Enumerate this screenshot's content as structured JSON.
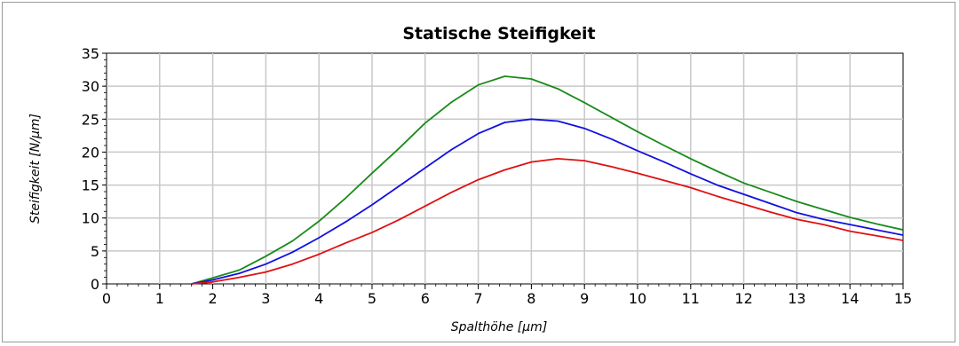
{
  "chart_data": {
    "type": "line",
    "title": "Statische Steifigkeit",
    "xlabel": "Spalthöhe [µm]",
    "ylabel": "Steifigkeit [N/µm]",
    "xlim": [
      0,
      15
    ],
    "ylim": [
      0,
      35
    ],
    "x_ticks": [
      "0",
      "1",
      "2",
      "3",
      "4",
      "5",
      "6",
      "7",
      "8",
      "9",
      "10",
      "11",
      "12",
      "13",
      "14",
      "15"
    ],
    "y_ticks": [
      "0",
      "5",
      "10",
      "15",
      "20",
      "25",
      "30",
      "35"
    ],
    "grid": true,
    "legend": "none",
    "series": [
      {
        "color": "#1a8a1a",
        "x": [
          1.6,
          2,
          2.5,
          3,
          3.5,
          4,
          4.5,
          5,
          5.5,
          6,
          6.5,
          7,
          7.5,
          8,
          8.5,
          9,
          9.5,
          10,
          10.5,
          11,
          11.5,
          12,
          12.5,
          13,
          13.5,
          14,
          14.5,
          15
        ],
        "y": [
          0,
          0.9,
          2.1,
          4.2,
          6.5,
          9.5,
          13,
          16.8,
          20.5,
          24.4,
          27.6,
          30.2,
          31.5,
          31.1,
          29.6,
          27.5,
          25.3,
          23.1,
          21.0,
          19.0,
          17.1,
          15.3,
          13.9,
          12.5,
          11.3,
          10.1,
          9.1,
          8.2
        ]
      },
      {
        "color": "#1010e0",
        "x": [
          1.6,
          2,
          2.5,
          3,
          3.5,
          4,
          4.5,
          5,
          5.5,
          6,
          6.5,
          7,
          7.5,
          8,
          8.5,
          9,
          9.5,
          10,
          10.5,
          11,
          11.5,
          12,
          12.5,
          13,
          13.5,
          14,
          14.5,
          15
        ],
        "y": [
          0,
          0.6,
          1.6,
          3.0,
          4.8,
          7.0,
          9.4,
          12.0,
          14.8,
          17.6,
          20.4,
          22.8,
          24.5,
          25.0,
          24.7,
          23.6,
          22.0,
          20.2,
          18.5,
          16.7,
          15.0,
          13.6,
          12.2,
          10.8,
          9.8,
          9.0,
          8.2,
          7.4
        ]
      },
      {
        "color": "#e01010",
        "x": [
          1.6,
          2,
          2.5,
          3,
          3.5,
          4,
          4.5,
          5,
          5.5,
          6,
          6.5,
          7,
          7.5,
          8,
          8.5,
          9,
          9.5,
          10,
          10.5,
          11,
          11.5,
          12,
          12.5,
          13,
          13.5,
          14,
          14.5,
          15
        ],
        "y": [
          0,
          0.3,
          1.0,
          1.8,
          3.0,
          4.5,
          6.2,
          7.8,
          9.7,
          11.8,
          13.9,
          15.8,
          17.3,
          18.5,
          19.0,
          18.7,
          17.8,
          16.8,
          15.7,
          14.6,
          13.3,
          12.1,
          10.9,
          9.8,
          9.0,
          8.0,
          7.3,
          6.6
        ]
      }
    ]
  }
}
